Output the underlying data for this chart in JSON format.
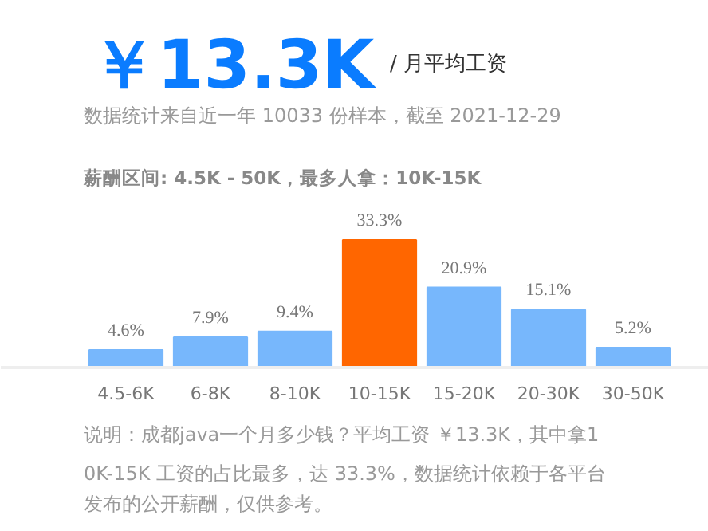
{
  "chart_data": {
    "type": "bar",
    "title": "￥13.3K",
    "subtitle": "/ 月平均工资",
    "categories": [
      "4.5-6K",
      "6-8K",
      "8-10K",
      "10-15K",
      "15-20K",
      "20-30K",
      "30-50K"
    ],
    "values": [
      4.6,
      7.9,
      9.4,
      33.3,
      20.9,
      15.1,
      5.2
    ],
    "colors": [
      "#77b7fc",
      "#77b7fc",
      "#77b7fc",
      "#ff6600",
      "#77b7fc",
      "#77b7fc",
      "#77b7fc"
    ],
    "value_labels": [
      "4.6%",
      "7.9%",
      "9.4%",
      "33.3%",
      "20.9%",
      "15.1%",
      "5.2%"
    ],
    "annotations": [
      "数据统计来自近一年 10033 份样本，截至 2021-12-29",
      "薪酬区间: 4.5K - 50K，最多人拿：10K-15K",
      "说明：成都java一个月多少钱？平均工资 ￥13.3K，其中拿10K-15K 工资的占比最多，达 33.3%，数据统计依赖于各平台发布的公开薪酬，仅供参考。"
    ],
    "grid": false
  }
}
